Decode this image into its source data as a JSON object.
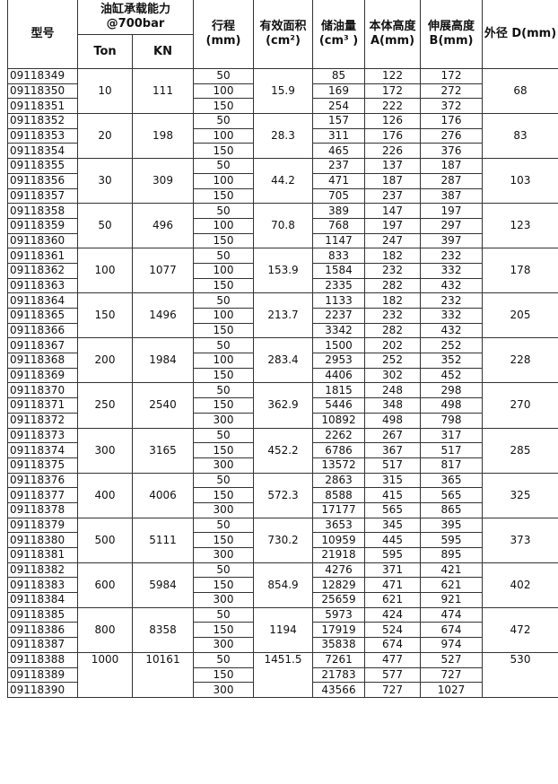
{
  "headers": {
    "model": "型号",
    "capacity": "油缸承载能力 @700bar",
    "ton": "Ton",
    "kn": "KN",
    "stroke": "行程 (mm)",
    "area": "有效面积 (cm²)",
    "oil": "储油量 (cm³ )",
    "a": "本体高度A(mm)",
    "b": "伸展高度 B(mm)",
    "d": "外径 D(mm)"
  },
  "groups": [
    {
      "ton": "10",
      "kn": "111",
      "area": "15.9",
      "d": "68",
      "rows": [
        [
          "09118349",
          "50",
          "85",
          "122",
          "172"
        ],
        [
          "09118350",
          "100",
          "169",
          "172",
          "272"
        ],
        [
          "09118351",
          "150",
          "254",
          "222",
          "372"
        ]
      ]
    },
    {
      "ton": "20",
      "kn": "198",
      "area": "28.3",
      "d": "83",
      "rows": [
        [
          "09118352",
          "50",
          "157",
          "126",
          "176"
        ],
        [
          "09118353",
          "100",
          "311",
          "176",
          "276"
        ],
        [
          "09118354",
          "150",
          "465",
          "226",
          "376"
        ]
      ]
    },
    {
      "ton": "30",
      "kn": "309",
      "area": "44.2",
      "d": "103",
      "rows": [
        [
          "09118355",
          "50",
          "237",
          "137",
          "187"
        ],
        [
          "09118356",
          "100",
          "471",
          "187",
          "287"
        ],
        [
          "09118357",
          "150",
          "705",
          "237",
          "387"
        ]
      ]
    },
    {
      "ton": "50",
      "kn": "496",
      "area": "70.8",
      "d": "123",
      "rows": [
        [
          "09118358",
          "50",
          "389",
          "147",
          "197"
        ],
        [
          "09118359",
          "100",
          "768",
          "197",
          "297"
        ],
        [
          "09118360",
          "150",
          "1147",
          "247",
          "397"
        ]
      ]
    },
    {
      "ton": "100",
      "kn": "1077",
      "area": "153.9",
      "d": "178",
      "rows": [
        [
          "09118361",
          "50",
          "833",
          "182",
          "232"
        ],
        [
          "09118362",
          "100",
          "1584",
          "232",
          "332"
        ],
        [
          "09118363",
          "150",
          "2335",
          "282",
          "432"
        ]
      ]
    },
    {
      "ton": "150",
      "kn": "1496",
      "area": "213.7",
      "d": "205",
      "rows": [
        [
          "09118364",
          "50",
          "1133",
          "182",
          "232"
        ],
        [
          "09118365",
          "100",
          "2237",
          "232",
          "332"
        ],
        [
          "09118366",
          "150",
          "3342",
          "282",
          "432"
        ]
      ]
    },
    {
      "ton": "200",
      "kn": "1984",
      "area": "283.4",
      "d": "228",
      "rows": [
        [
          "09118367",
          "50",
          "1500",
          "202",
          "252"
        ],
        [
          "09118368",
          "100",
          "2953",
          "252",
          "352"
        ],
        [
          "09118369",
          "150",
          "4406",
          "302",
          "452"
        ]
      ]
    },
    {
      "ton": "250",
      "kn": "2540",
      "area": "362.9",
      "d": "270",
      "rows": [
        [
          "09118370",
          "50",
          "1815",
          "248",
          "298"
        ],
        [
          "09118371",
          "150",
          "5446",
          "348",
          "498"
        ],
        [
          "09118372",
          "300",
          "10892",
          "498",
          "798"
        ]
      ]
    },
    {
      "ton": "300",
      "kn": "3165",
      "area": "452.2",
      "d": "285",
      "rows": [
        [
          "09118373",
          "50",
          "2262",
          "267",
          "317"
        ],
        [
          "09118374",
          "150",
          "6786",
          "367",
          "517"
        ],
        [
          "09118375",
          "300",
          "13572",
          "517",
          "817"
        ]
      ]
    },
    {
      "ton": "400",
      "kn": "4006",
      "area": "572.3",
      "d": "325",
      "rows": [
        [
          "09118376",
          "50",
          "2863",
          "315",
          "365"
        ],
        [
          "09118377",
          "150",
          "8588",
          "415",
          "565"
        ],
        [
          "09118378",
          "300",
          "17177",
          "565",
          "865"
        ]
      ]
    },
    {
      "ton": "500",
      "kn": "5111",
      "area": "730.2",
      "d": "373",
      "rows": [
        [
          "09118379",
          "50",
          "3653",
          "345",
          "395"
        ],
        [
          "09118380",
          "150",
          "10959",
          "445",
          "595"
        ],
        [
          "09118381",
          "300",
          "21918",
          "595",
          "895"
        ]
      ]
    },
    {
      "ton": "600",
      "kn": "5984",
      "area": "854.9",
      "d": "402",
      "rows": [
        [
          "09118382",
          "50",
          "4276",
          "371",
          "421"
        ],
        [
          "09118383",
          "150",
          "12829",
          "471",
          "621"
        ],
        [
          "09118384",
          "300",
          "25659",
          "621",
          "921"
        ]
      ]
    },
    {
      "ton": "800",
      "kn": "8358",
      "area": "1194",
      "d": "472",
      "rows": [
        [
          "09118385",
          "50",
          "5973",
          "424",
          "474"
        ],
        [
          "09118386",
          "150",
          "17919",
          "524",
          "674"
        ],
        [
          "09118387",
          "300",
          "35838",
          "674",
          "974"
        ]
      ]
    },
    {
      "ton": "1000",
      "kn": "10161",
      "area": "1451.5",
      "d": "530",
      "top": true,
      "rows": [
        [
          "09118388",
          "50",
          "7261",
          "477",
          "527"
        ],
        [
          "09118389",
          "150",
          "21783",
          "577",
          "727"
        ],
        [
          "09118390",
          "300",
          "43566",
          "727",
          "1027"
        ]
      ]
    }
  ]
}
